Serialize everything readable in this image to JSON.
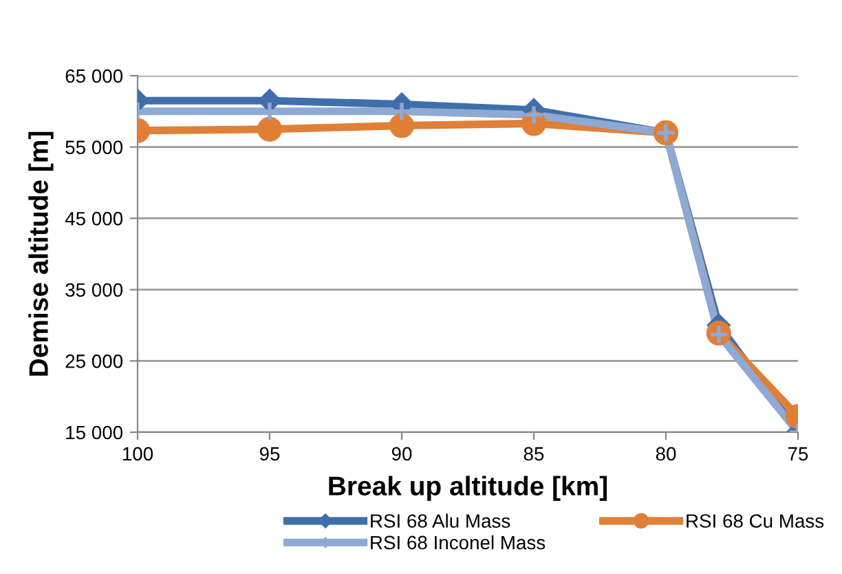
{
  "chart_data": {
    "type": "line",
    "xlabel": "Break up altitude [km]",
    "ylabel": "Demise altitude [m]",
    "xlim": [
      100,
      75
    ],
    "xticks": [
      100,
      95,
      90,
      85,
      80,
      75
    ],
    "ylim": [
      15000,
      65000
    ],
    "yticks": [
      {
        "value": 15000,
        "label": "15 000"
      },
      {
        "value": 25000,
        "label": "25 000"
      },
      {
        "value": 35000,
        "label": "35 000"
      },
      {
        "value": 45000,
        "label": "45 000"
      },
      {
        "value": 55000,
        "label": "55 000"
      },
      {
        "value": 65000,
        "label": "65 000"
      }
    ],
    "grid": "y",
    "legend": "bottom",
    "series": [
      {
        "name": "RSI 68 Alu Mass",
        "color": "#3f6fab",
        "marker": "diamond",
        "x": [
          100,
          95,
          90,
          85,
          80,
          78,
          75
        ],
        "values": [
          61500,
          61500,
          61000,
          60200,
          57000,
          30000,
          15000
        ]
      },
      {
        "name": "RSI 68 Cu Mass",
        "color": "#e07f36",
        "marker": "circle",
        "x": [
          100,
          95,
          90,
          85,
          80,
          78,
          75
        ],
        "values": [
          57300,
          57500,
          58000,
          58300,
          57000,
          28900,
          17200
        ]
      },
      {
        "name": "RSI 68 Inconel Mass",
        "color": "#8ea9d3",
        "marker": "cross",
        "x": [
          100,
          95,
          90,
          85,
          80,
          78,
          75
        ],
        "values": [
          60000,
          60000,
          60000,
          59500,
          57000,
          28700,
          15000
        ]
      }
    ]
  }
}
